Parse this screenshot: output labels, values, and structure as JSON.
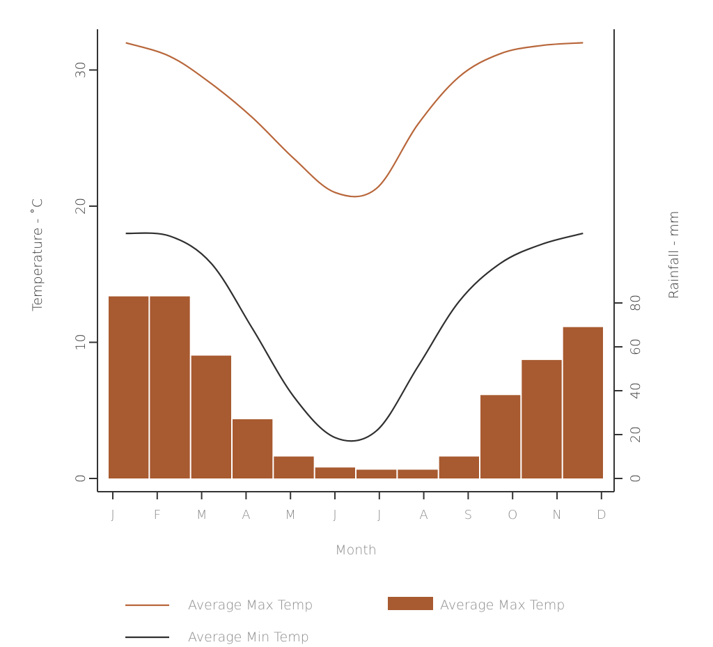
{
  "chart_data": {
    "type": "bar",
    "categories": [
      "J",
      "F",
      "M",
      "A",
      "M",
      "J",
      "J",
      "A",
      "S",
      "O",
      "N",
      "D"
    ],
    "xlabel": "Month",
    "ylabel_left": "Temperature - ˚C",
    "ylabel_right": "Rainfall - mm",
    "left_axis": {
      "range": [
        0,
        34
      ],
      "ticks": [
        0,
        10,
        20,
        30
      ]
    },
    "right_axis": {
      "range": [
        0,
        200
      ],
      "ticks": [
        0,
        20,
        40,
        60,
        80
      ]
    },
    "series": [
      {
        "name": "Average Max Temp",
        "kind": "bar",
        "axis": "right",
        "color": "#a85a30",
        "values": [
          83,
          83,
          56,
          27,
          10,
          5,
          4,
          4,
          10,
          38,
          54,
          69
        ]
      },
      {
        "name": "Average Max Temp",
        "kind": "line",
        "axis": "left",
        "color": "#b8663a",
        "values": [
          32,
          31,
          29,
          26.5,
          23.5,
          21,
          21.3,
          26,
          29.5,
          31.2,
          31.8,
          32
        ]
      },
      {
        "name": "Average Min Temp",
        "kind": "line",
        "axis": "left",
        "color": "#2f2f2f",
        "values": [
          18,
          17.8,
          15.8,
          11,
          6,
          3,
          3.5,
          8.2,
          13,
          15.8,
          17.2,
          18
        ]
      }
    ],
    "grid": false,
    "legend_position": "bottom"
  }
}
